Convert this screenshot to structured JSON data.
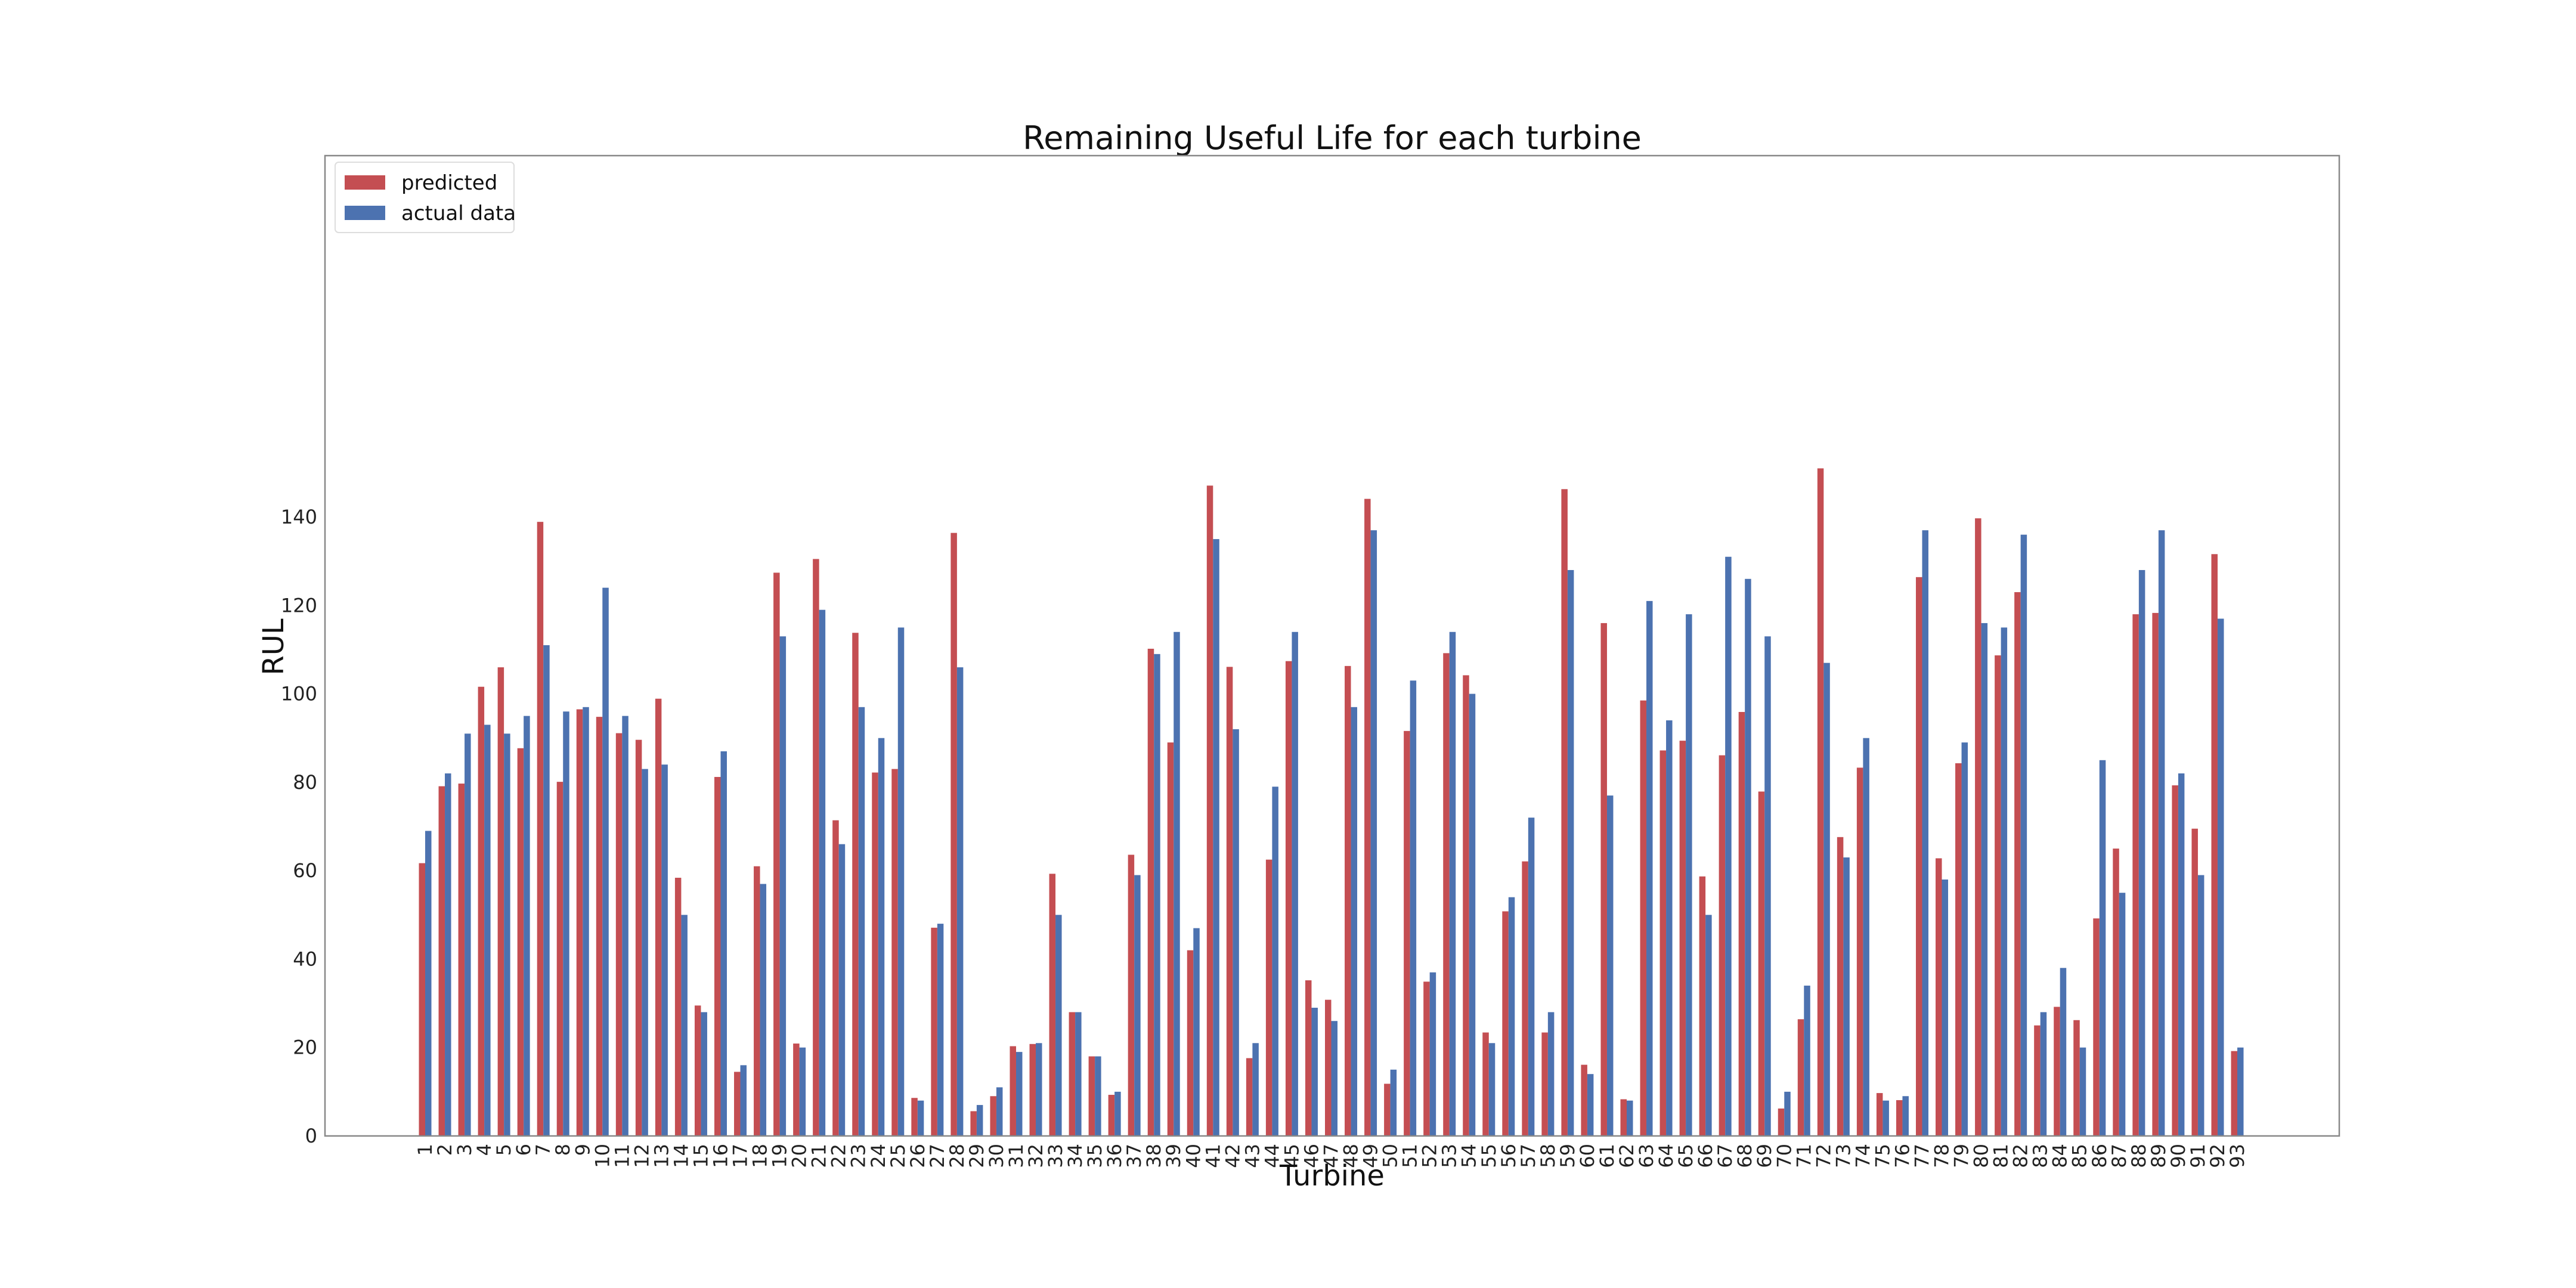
{
  "chart_data": {
    "type": "bar",
    "title": "Remaining Useful Life for each turbine",
    "xlabel": "Turbine",
    "ylabel": "RUL",
    "ylim": [
      0,
      158
    ],
    "yticks": [
      0,
      20,
      40,
      60,
      80,
      100,
      120,
      140
    ],
    "grid": false,
    "legend_position": "top-left",
    "categories": [
      "1",
      "2",
      "3",
      "4",
      "5",
      "6",
      "7",
      "8",
      "9",
      "10",
      "11",
      "12",
      "13",
      "14",
      "15",
      "16",
      "17",
      "18",
      "19",
      "20",
      "21",
      "22",
      "23",
      "24",
      "25",
      "26",
      "27",
      "28",
      "29",
      "30",
      "31",
      "32",
      "33",
      "34",
      "35",
      "36",
      "37",
      "38",
      "39",
      "40",
      "41",
      "42",
      "43",
      "44",
      "45",
      "46",
      "47",
      "48",
      "49",
      "50",
      "51",
      "52",
      "53",
      "54",
      "55",
      "56",
      "57",
      "58",
      "59",
      "60",
      "61",
      "62",
      "63",
      "64",
      "65",
      "66",
      "67",
      "68",
      "69",
      "70",
      "71",
      "72",
      "73",
      "74",
      "75",
      "76",
      "77",
      "78",
      "79",
      "80",
      "81",
      "82",
      "83",
      "84",
      "85",
      "86",
      "87",
      "88",
      "89",
      "90",
      "91",
      "92",
      "93"
    ],
    "series": [
      {
        "name": "predicted",
        "color": "#c44e52",
        "values": [
          61.7,
          79.1,
          79.7,
          101.6,
          106.0,
          87.7,
          138.9,
          80.1,
          96.5,
          94.8,
          91.1,
          89.6,
          98.9,
          58.4,
          29.5,
          81.2,
          14.5,
          61.0,
          127.4,
          20.9,
          130.5,
          71.4,
          113.8,
          82.2,
          83.0,
          8.6,
          47.1,
          136.4,
          5.6,
          9.0,
          20.3,
          20.8,
          59.3,
          28.0,
          18.0,
          9.3,
          63.6,
          110.2,
          89.0,
          42.0,
          147.1,
          106.1,
          17.6,
          62.5,
          107.4,
          35.2,
          30.8,
          106.3,
          144.1,
          11.8,
          91.6,
          34.9,
          109.2,
          104.2,
          23.4,
          50.8,
          62.1,
          23.4,
          146.3,
          16.1,
          116.0,
          8.3,
          98.5,
          87.2,
          89.4,
          58.7,
          86.1,
          95.9,
          77.9,
          6.2,
          26.4,
          151.0,
          67.6,
          83.3,
          9.7,
          8.1,
          126.4,
          62.8,
          84.3,
          139.7,
          108.7,
          123.0,
          25.0,
          29.2,
          26.2,
          49.2,
          65.0,
          118.0,
          118.3,
          79.3,
          69.5,
          131.6,
          19.2
        ]
      },
      {
        "name": "actual data",
        "color": "#4c72b0",
        "values": [
          69,
          82,
          91,
          93,
          91,
          95,
          111,
          96,
          97,
          124,
          95,
          83,
          84,
          50,
          28,
          87,
          16,
          57,
          113,
          20,
          119,
          66,
          97,
          90,
          115,
          8,
          48,
          106,
          7,
          11,
          19,
          21,
          50,
          28,
          18,
          10,
          59,
          109,
          114,
          47,
          135,
          92,
          21,
          79,
          114,
          29,
          26,
          97,
          137,
          15,
          103,
          37,
          114,
          100,
          21,
          54,
          72,
          28,
          128,
          14,
          77,
          8,
          121,
          94,
          118,
          50,
          131,
          126,
          113,
          10,
          34,
          107,
          63,
          90,
          8,
          9,
          137,
          58,
          89,
          116,
          115,
          136,
          28,
          38,
          20,
          85,
          55,
          128,
          137,
          82,
          59,
          117,
          20
        ]
      }
    ]
  }
}
